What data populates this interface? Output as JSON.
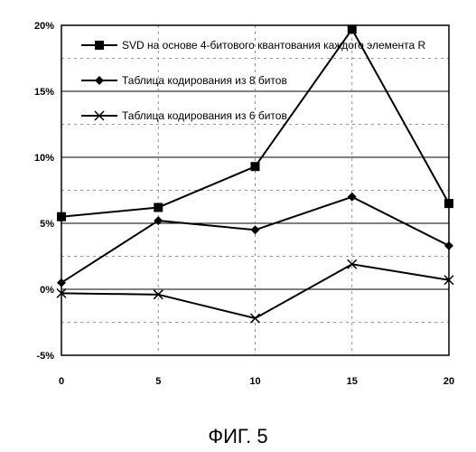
{
  "chart_data": {
    "type": "line",
    "x": [
      0,
      5,
      10,
      15,
      20
    ],
    "ylim": [
      -5,
      20
    ],
    "xlim": [
      0,
      20
    ],
    "y_ticks": [
      "20%",
      "15%",
      "10%",
      "5%",
      "0%",
      "-5%"
    ],
    "x_ticks": [
      "0",
      "5",
      "10",
      "15",
      "20"
    ],
    "grid": true,
    "legend_position": "top",
    "series": [
      {
        "name": "SVD на основе 4-битового квантования каждого элемента R",
        "marker": "square",
        "values": [
          5.5,
          6.2,
          9.3,
          19.7,
          6.5
        ]
      },
      {
        "name": "Таблица кодирования из 8 битов",
        "marker": "diamond",
        "values": [
          0.5,
          5.2,
          4.5,
          7.0,
          3.3
        ]
      },
      {
        "name": "Таблица кодирования из 6 битов",
        "marker": "x",
        "values": [
          -0.3,
          -0.4,
          -2.2,
          1.9,
          0.7
        ]
      }
    ]
  },
  "caption": "ФИГ. 5"
}
